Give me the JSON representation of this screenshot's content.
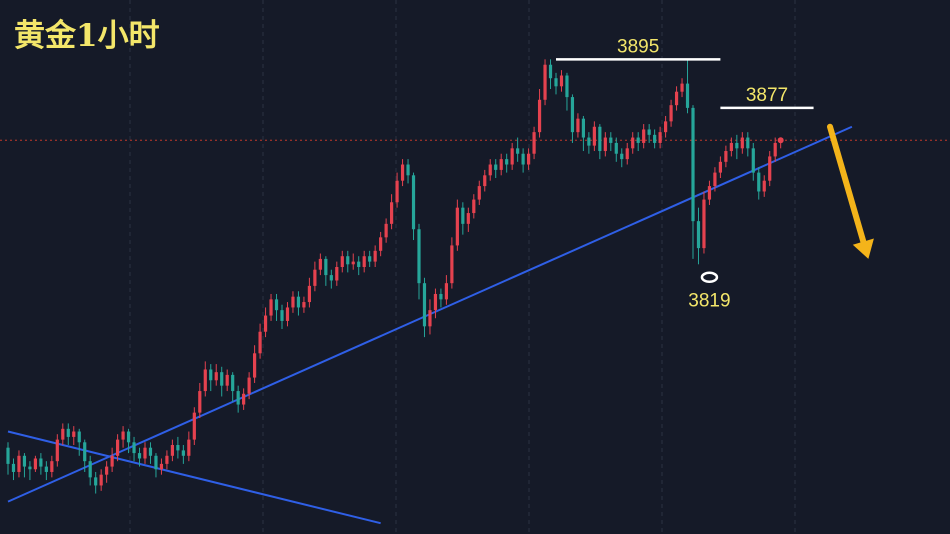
{
  "chart_data": {
    "type": "candlestick",
    "title": "黄金1小时",
    "xlabel": "",
    "ylabel": "",
    "ylim": [
      3719,
      3917
    ],
    "grid": true,
    "colors": {
      "background": "#151a28",
      "up": "#e5424f",
      "down": "#26a69a",
      "grid": "#2a3142",
      "trendline": "#2f5fe6",
      "level": "#ffffff",
      "label": "#f3e66a",
      "arrow": "#f4b41a",
      "price_line": "#c0392b"
    },
    "candles": [
      [
        3751,
        3745,
        3753,
        3741
      ],
      [
        3745,
        3742,
        3747,
        3739
      ],
      [
        3742,
        3748,
        3750,
        3740
      ],
      [
        3748,
        3744,
        3749,
        3740
      ],
      [
        3744,
        3743,
        3746,
        3739
      ],
      [
        3743,
        3747,
        3748,
        3742
      ],
      [
        3747,
        3744,
        3749,
        3741
      ],
      [
        3744,
        3742,
        3746,
        3739
      ],
      [
        3742,
        3746,
        3748,
        3740
      ],
      [
        3746,
        3754,
        3756,
        3744
      ],
      [
        3754,
        3758,
        3760,
        3752
      ],
      [
        3758,
        3755,
        3760,
        3752
      ],
      [
        3755,
        3757,
        3759,
        3752
      ],
      [
        3757,
        3753,
        3758,
        3748
      ],
      [
        3753,
        3746,
        3754,
        3742
      ],
      [
        3746,
        3740,
        3748,
        3737
      ],
      [
        3740,
        3737,
        3742,
        3734
      ],
      [
        3737,
        3741,
        3743,
        3735
      ],
      [
        3741,
        3744,
        3746,
        3738
      ],
      [
        3744,
        3748,
        3751,
        3742
      ],
      [
        3748,
        3754,
        3756,
        3746
      ],
      [
        3754,
        3757,
        3759,
        3751
      ],
      [
        3757,
        3753,
        3758,
        3749
      ],
      [
        3753,
        3749,
        3755,
        3746
      ],
      [
        3749,
        3747,
        3751,
        3744
      ],
      [
        3747,
        3751,
        3753,
        3745
      ],
      [
        3751,
        3748,
        3753,
        3745
      ],
      [
        3748,
        3743,
        3749,
        3740
      ],
      [
        3743,
        3745,
        3747,
        3741
      ],
      [
        3745,
        3748,
        3750,
        3743
      ],
      [
        3748,
        3752,
        3754,
        3746
      ],
      [
        3752,
        3750,
        3755,
        3747
      ],
      [
        3750,
        3748,
        3752,
        3745
      ],
      [
        3748,
        3754,
        3757,
        3746
      ],
      [
        3754,
        3764,
        3766,
        3752
      ],
      [
        3764,
        3772,
        3775,
        3762
      ],
      [
        3772,
        3780,
        3783,
        3770
      ],
      [
        3780,
        3776,
        3782,
        3772
      ],
      [
        3776,
        3779,
        3782,
        3774
      ],
      [
        3779,
        3774,
        3781,
        3770
      ],
      [
        3774,
        3778,
        3780,
        3772
      ],
      [
        3778,
        3772,
        3779,
        3768
      ],
      [
        3772,
        3767,
        3774,
        3764
      ],
      [
        3767,
        3771,
        3773,
        3765
      ],
      [
        3771,
        3777,
        3779,
        3769
      ],
      [
        3777,
        3786,
        3789,
        3775
      ],
      [
        3786,
        3794,
        3797,
        3784
      ],
      [
        3794,
        3800,
        3803,
        3792
      ],
      [
        3800,
        3806,
        3808,
        3798
      ],
      [
        3806,
        3802,
        3808,
        3798
      ],
      [
        3802,
        3798,
        3804,
        3795
      ],
      [
        3798,
        3803,
        3805,
        3796
      ],
      [
        3803,
        3807,
        3809,
        3801
      ],
      [
        3807,
        3803,
        3809,
        3800
      ],
      [
        3803,
        3805,
        3807,
        3801
      ],
      [
        3805,
        3811,
        3814,
        3803
      ],
      [
        3811,
        3817,
        3820,
        3809
      ],
      [
        3817,
        3821,
        3823,
        3815
      ],
      [
        3821,
        3815,
        3822,
        3811
      ],
      [
        3815,
        3813,
        3817,
        3810
      ],
      [
        3813,
        3818,
        3820,
        3811
      ],
      [
        3818,
        3822,
        3824,
        3816
      ],
      [
        3822,
        3819,
        3824,
        3816
      ],
      [
        3819,
        3820,
        3823,
        3817
      ],
      [
        3820,
        3818,
        3822,
        3815
      ],
      [
        3818,
        3822,
        3824,
        3816
      ],
      [
        3822,
        3820,
        3824,
        3818
      ],
      [
        3820,
        3824,
        3826,
        3818
      ],
      [
        3824,
        3829,
        3831,
        3822
      ],
      [
        3829,
        3834,
        3836,
        3827
      ],
      [
        3834,
        3842,
        3845,
        3832
      ],
      [
        3842,
        3850,
        3853,
        3840
      ],
      [
        3850,
        3856,
        3858,
        3848
      ],
      [
        3856,
        3852,
        3858,
        3849
      ],
      [
        3852,
        3832,
        3853,
        3828
      ],
      [
        3832,
        3812,
        3834,
        3806
      ],
      [
        3812,
        3796,
        3814,
        3792
      ],
      [
        3796,
        3802,
        3806,
        3793
      ],
      [
        3802,
        3808,
        3810,
        3799
      ],
      [
        3808,
        3806,
        3810,
        3803
      ],
      [
        3806,
        3812,
        3815,
        3804
      ],
      [
        3812,
        3826,
        3829,
        3810
      ],
      [
        3826,
        3840,
        3843,
        3824
      ],
      [
        3840,
        3834,
        3842,
        3830
      ],
      [
        3834,
        3838,
        3840,
        3831
      ],
      [
        3838,
        3843,
        3845,
        3836
      ],
      [
        3843,
        3848,
        3850,
        3841
      ],
      [
        3848,
        3852,
        3854,
        3846
      ],
      [
        3852,
        3856,
        3858,
        3850
      ],
      [
        3856,
        3854,
        3858,
        3851
      ],
      [
        3854,
        3858,
        3860,
        3852
      ],
      [
        3858,
        3856,
        3860,
        3853
      ],
      [
        3856,
        3862,
        3864,
        3854
      ],
      [
        3862,
        3860,
        3866,
        3857
      ],
      [
        3860,
        3856,
        3862,
        3853
      ],
      [
        3856,
        3860,
        3862,
        3854
      ],
      [
        3860,
        3868,
        3870,
        3858
      ],
      [
        3868,
        3880,
        3884,
        3866
      ],
      [
        3880,
        3893,
        3895,
        3878
      ],
      [
        3893,
        3888,
        3895,
        3884
      ],
      [
        3888,
        3885,
        3890,
        3882
      ],
      [
        3885,
        3889,
        3891,
        3883
      ],
      [
        3889,
        3881,
        3890,
        3876
      ],
      [
        3881,
        3868,
        3882,
        3864
      ],
      [
        3868,
        3873,
        3875,
        3866
      ],
      [
        3873,
        3866,
        3874,
        3861
      ],
      [
        3866,
        3863,
        3868,
        3860
      ],
      [
        3863,
        3870,
        3872,
        3861
      ],
      [
        3870,
        3861,
        3871,
        3858
      ],
      [
        3861,
        3866,
        3868,
        3859
      ],
      [
        3866,
        3864,
        3868,
        3861
      ],
      [
        3864,
        3860,
        3866,
        3857
      ],
      [
        3860,
        3858,
        3862,
        3855
      ],
      [
        3858,
        3862,
        3864,
        3856
      ],
      [
        3862,
        3866,
        3868,
        3860
      ],
      [
        3866,
        3864,
        3868,
        3861
      ],
      [
        3864,
        3869,
        3871,
        3862
      ],
      [
        3869,
        3867,
        3871,
        3864
      ],
      [
        3867,
        3864,
        3869,
        3862
      ],
      [
        3864,
        3868,
        3870,
        3862
      ],
      [
        3868,
        3872,
        3874,
        3866
      ],
      [
        3872,
        3878,
        3880,
        3870
      ],
      [
        3878,
        3883,
        3885,
        3876
      ],
      [
        3883,
        3886,
        3888,
        3881
      ],
      [
        3886,
        3877,
        3895,
        3875
      ],
      [
        3877,
        3835,
        3878,
        3821
      ],
      [
        3835,
        3825,
        3840,
        3819
      ],
      [
        3825,
        3843,
        3846,
        3823
      ],
      [
        3843,
        3848,
        3850,
        3841
      ],
      [
        3848,
        3853,
        3855,
        3846
      ],
      [
        3853,
        3857,
        3859,
        3851
      ],
      [
        3857,
        3861,
        3863,
        3855
      ],
      [
        3861,
        3864,
        3866,
        3859
      ],
      [
        3864,
        3862,
        3867,
        3858
      ],
      [
        3862,
        3866,
        3868,
        3860
      ],
      [
        3866,
        3862,
        3868,
        3859
      ],
      [
        3862,
        3853,
        3864,
        3850
      ],
      [
        3853,
        3846,
        3855,
        3843
      ],
      [
        3846,
        3850,
        3852,
        3844
      ],
      [
        3850,
        3859,
        3861,
        3848
      ],
      [
        3859,
        3864,
        3866,
        3857
      ],
      [
        3864,
        3865,
        3866,
        3862
      ]
    ],
    "annotations": [
      {
        "type": "level",
        "value": 3895,
        "label": "3895",
        "x_from": 100,
        "x_to": 130
      },
      {
        "type": "level",
        "value": 3877,
        "label": "3877",
        "x_from": 130,
        "x_to": 147
      },
      {
        "type": "low",
        "index": 128,
        "value": 3819,
        "label": "3819"
      },
      {
        "type": "trendline",
        "points": [
          [
            0,
            3731
          ],
          [
            154,
            3870
          ]
        ]
      },
      {
        "type": "trendline",
        "points": [
          [
            0,
            3757
          ],
          [
            68,
            3723
          ]
        ]
      },
      {
        "type": "price_line",
        "value": 3865
      },
      {
        "type": "arrow",
        "from": [
          150,
          3870
        ],
        "to": [
          157,
          3821
        ]
      }
    ]
  }
}
